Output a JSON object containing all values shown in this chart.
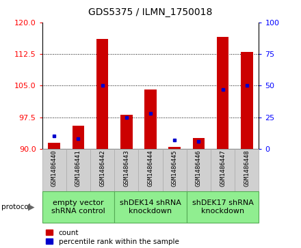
{
  "title": "GDS5375 / ILMN_1750018",
  "samples": [
    "GSM1486440",
    "GSM1486441",
    "GSM1486442",
    "GSM1486443",
    "GSM1486444",
    "GSM1486445",
    "GSM1486446",
    "GSM1486447",
    "GSM1486448"
  ],
  "counts": [
    91.5,
    95.5,
    116.0,
    98.0,
    104.0,
    90.5,
    92.5,
    116.5,
    113.0
  ],
  "percentile_ranks": [
    10,
    8,
    50,
    25,
    28,
    7,
    6,
    47,
    50
  ],
  "ylim_left": [
    90,
    120
  ],
  "ylim_right": [
    0,
    100
  ],
  "yticks_left": [
    90,
    97.5,
    105,
    112.5,
    120
  ],
  "yticks_right": [
    0,
    25,
    50,
    75,
    100
  ],
  "group_labels": [
    "empty vector\nshRNA control",
    "shDEK14 shRNA\nknockdown",
    "shDEK17 shRNA\nknockdown"
  ],
  "group_ranges": [
    [
      0,
      3
    ],
    [
      3,
      6
    ],
    [
      6,
      9
    ]
  ],
  "group_color": "#90EE90",
  "group_font_sizes": [
    8,
    8,
    8
  ],
  "bar_color": "#CC0000",
  "percentile_color": "#0000CC",
  "bar_width": 0.5,
  "protocol_label": "protocol",
  "legend_count_label": "count",
  "legend_percentile_label": "percentile rank within the sample",
  "base_value": 90,
  "sample_box_color": "#d0d0d0",
  "sample_box_edge_color": "#aaaaaa"
}
